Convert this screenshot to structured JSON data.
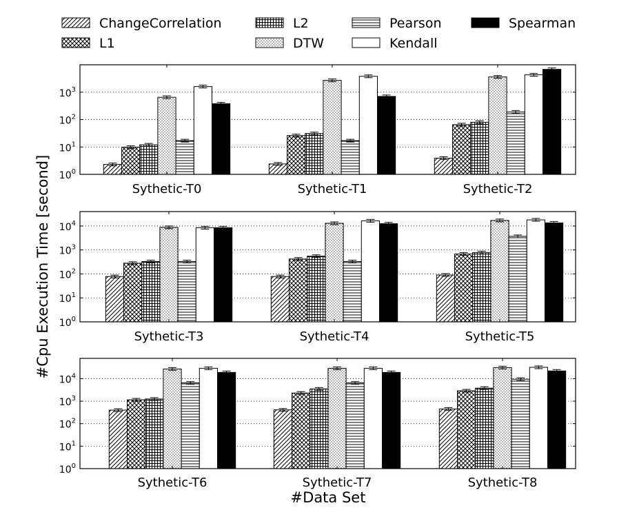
{
  "chart_data": {
    "type": "bar",
    "scale": "log",
    "ylabel": "#Cpu Execution Time [second]",
    "xlabel": "#Data Set",
    "legend_position": "top",
    "grid": "horizontal dotted",
    "series": [
      {
        "name": "ChangeCorrelation",
        "pattern": "diagonal-hatch",
        "color": "#ffffff"
      },
      {
        "name": "L1",
        "pattern": "crosshatch",
        "color": "#ffffff"
      },
      {
        "name": "L2",
        "pattern": "grid",
        "color": "#ffffff"
      },
      {
        "name": "DTW",
        "pattern": "dots",
        "color": "#ffffff"
      },
      {
        "name": "Pearson",
        "pattern": "horizontal-lines",
        "color": "#ffffff"
      },
      {
        "name": "Kendall",
        "pattern": "none",
        "color": "#ffffff"
      },
      {
        "name": "Spearman",
        "pattern": "solid",
        "color": "#000000"
      }
    ],
    "panels": [
      {
        "categories": [
          "Sythetic-T0",
          "Sythetic-T1",
          "Sythetic-T2"
        ],
        "ylim": [
          1,
          10000
        ],
        "yticks": [
          1,
          10,
          100,
          1000
        ],
        "values": [
          [
            2.3,
            9.8,
            12,
            650,
            17,
            1600,
            380
          ],
          [
            2.4,
            26,
            31,
            2700,
            17,
            3800,
            700
          ],
          [
            3.9,
            65,
            80,
            3600,
            190,
            4300,
            6800
          ]
        ]
      },
      {
        "categories": [
          "Sythetic-T3",
          "Sythetic-T4",
          "Sythetic-T5"
        ],
        "ylim": [
          1,
          40000
        ],
        "yticks": [
          1,
          10,
          100,
          1000,
          10000
        ],
        "values": [
          [
            78,
            280,
            330,
            8800,
            330,
            8500,
            8500
          ],
          [
            78,
            420,
            550,
            13000,
            330,
            16500,
            12500
          ],
          [
            90,
            680,
            780,
            17000,
            3700,
            18000,
            13500
          ]
        ]
      },
      {
        "categories": [
          "Sythetic-T6",
          "Sythetic-T7",
          "Sythetic-T8"
        ],
        "ylim": [
          1,
          80000
        ],
        "yticks": [
          1,
          10,
          100,
          1000,
          10000
        ],
        "values": [
          [
            400,
            1150,
            1250,
            27000,
            6500,
            29000,
            19000
          ],
          [
            410,
            2300,
            3500,
            29000,
            6500,
            29000,
            19000
          ],
          [
            450,
            2900,
            3800,
            31000,
            9500,
            32000,
            22000
          ]
        ]
      }
    ]
  }
}
